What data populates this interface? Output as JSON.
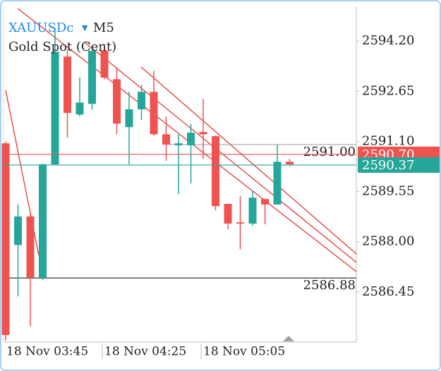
{
  "chart_data": {
    "type": "candlestick",
    "symbol": "XAUUSDc",
    "timeframe": "M5",
    "description": "Gold Spot (Cent)",
    "categories": [
      "18 Nov 03:45",
      null,
      null,
      null,
      null,
      null,
      null,
      null,
      "18 Nov 04:25",
      null,
      null,
      null,
      null,
      null,
      null,
      null,
      "18 Nov 05:05",
      null,
      null,
      null,
      null,
      null,
      null,
      null
    ],
    "open": [
      2591.04,
      2587.9,
      2588.78,
      2586.9,
      2590.39,
      2593.72,
      2591.93,
      2592.26,
      2593.9,
      2593.02,
      2591.54,
      2592.09,
      2592.63,
      2591.32,
      2590.98,
      2590.98,
      2591.39,
      2591.26,
      2589.17,
      2588.6,
      2588.56,
      2589.32,
      2589.15,
      2590.47
    ],
    "high": [
      2591.1,
      2589.15,
      2588.93,
      2590.41,
      2594.59,
      2593.94,
      2593.07,
      2593.9,
      2594.11,
      2593.39,
      2592.63,
      2592.85,
      2593.28,
      2591.87,
      2591.32,
      2591.65,
      2592.41,
      2591.28,
      2589.17,
      2589.41,
      2589.58,
      2589.32,
      2591.0,
      2590.56
    ],
    "low": [
      2584.95,
      2586.31,
      2585.38,
      2586.81,
      2590.39,
      2591.22,
      2591.87,
      2592.09,
      2593.02,
      2591.32,
      2590.39,
      2591.76,
      2591.28,
      2590.5,
      2589.47,
      2589.8,
      2590.56,
      2588.97,
      2588.38,
      2587.77,
      2588.49,
      2588.54,
      2589.15,
      2590.34
    ],
    "close": [
      2585.12,
      2588.78,
      2586.9,
      2590.39,
      2593.87,
      2591.98,
      2592.3,
      2593.9,
      2593.07,
      2591.65,
      2592.09,
      2592.63,
      2591.32,
      2591.0,
      2591.04,
      2591.37,
      2591.32,
      2589.1,
      2588.56,
      2588.56,
      2589.36,
      2589.15,
      2590.47,
      2590.39
    ],
    "up_color": "#26a69a",
    "down_color": "#ef5350",
    "ylim": [
      2584.9,
      2595.25
    ],
    "yticks": [
      {
        "value": 2594.2,
        "label": "2594.20"
      },
      2592.65,
      {
        "value": 2591.1,
        "label": "2591.10"
      },
      2589.55,
      {
        "value": 2588.0,
        "label": "2588.00"
      },
      2586.45
    ],
    "lines": [
      {
        "value": 2591.0,
        "label": "2591.00",
        "color": "#9e9e9e"
      },
      {
        "value": 2586.88,
        "color": "#000000"
      }
    ],
    "price_markers": [
      {
        "value": 2590.7,
        "label": "2590.70",
        "color": "#ef5350"
      },
      {
        "value": 2590.37,
        "color": "#26a69a"
      }
    ]
  }
}
